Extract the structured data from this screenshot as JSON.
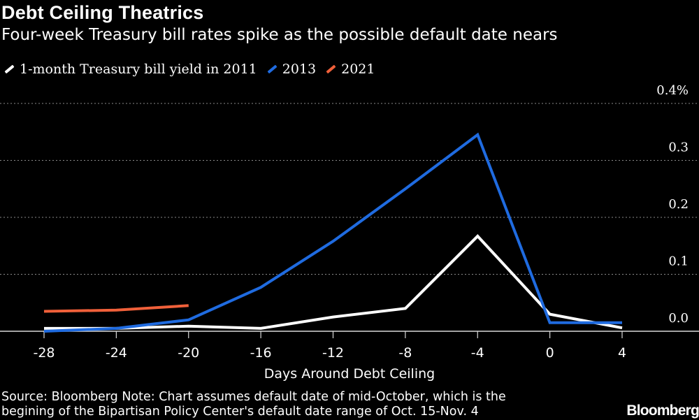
{
  "header": {
    "title": "Debt Ceiling Theatrics",
    "subtitle": "Four-week Treasury bill rates spike as the possible default date nears"
  },
  "colors": {
    "background": "#000000",
    "text": "#ffffff",
    "grid": "#8a8a8a",
    "s2011": "#ffffff",
    "s2013": "#1f6be0",
    "s2021": "#f0603a"
  },
  "chart_data": {
    "type": "line",
    "title": "Debt Ceiling Theatrics",
    "subtitle": "Four-week Treasury bill rates spike as the possible default date nears",
    "xlabel": "Days Around Debt Ceiling",
    "ylabel": "",
    "xlim": [
      -28,
      4
    ],
    "ylim": [
      0,
      0.4
    ],
    "x_ticks": [
      -28,
      -24,
      -20,
      -16,
      -12,
      -8,
      -4,
      0,
      4
    ],
    "x_tick_labels": [
      "-28",
      "-24",
      "-20",
      "-16",
      "-12",
      "-8",
      "-4",
      "0",
      "4"
    ],
    "y_ticks": [
      0.0,
      0.1,
      0.2,
      0.3,
      0.4
    ],
    "y_tick_labels": [
      "0.0",
      "0.1",
      "0.2",
      "0.3",
      "0.4%"
    ],
    "grid": true,
    "legend_position": "top-left",
    "series": [
      {
        "name": "1-month Treasury bill yield in 2011",
        "color": "#ffffff",
        "x": [
          -28,
          -24,
          -20,
          -16,
          -12,
          -8,
          -4,
          0,
          4
        ],
        "y": [
          0.005,
          0.005,
          0.009,
          0.005,
          0.025,
          0.04,
          0.167,
          0.03,
          0.006
        ]
      },
      {
        "name": "2013",
        "color": "#1f6be0",
        "x": [
          -28,
          -24,
          -20,
          -16,
          -12,
          -8,
          -4,
          0,
          4
        ],
        "y": [
          0.0,
          0.005,
          0.02,
          0.077,
          0.158,
          0.25,
          0.345,
          0.015,
          0.015
        ]
      },
      {
        "name": "2021",
        "color": "#f0603a",
        "x": [
          -28,
          -24,
          -20
        ],
        "y": [
          0.035,
          0.037,
          0.045
        ]
      }
    ]
  },
  "footer": {
    "source_line1": "Source: Bloomberg Note: Chart assumes default date of mid-October, which is the",
    "source_line2": "begining of the Bipartisan Policy Center's default date range of Oct. 15-Nov. 4",
    "logo": "Bloomberg"
  }
}
